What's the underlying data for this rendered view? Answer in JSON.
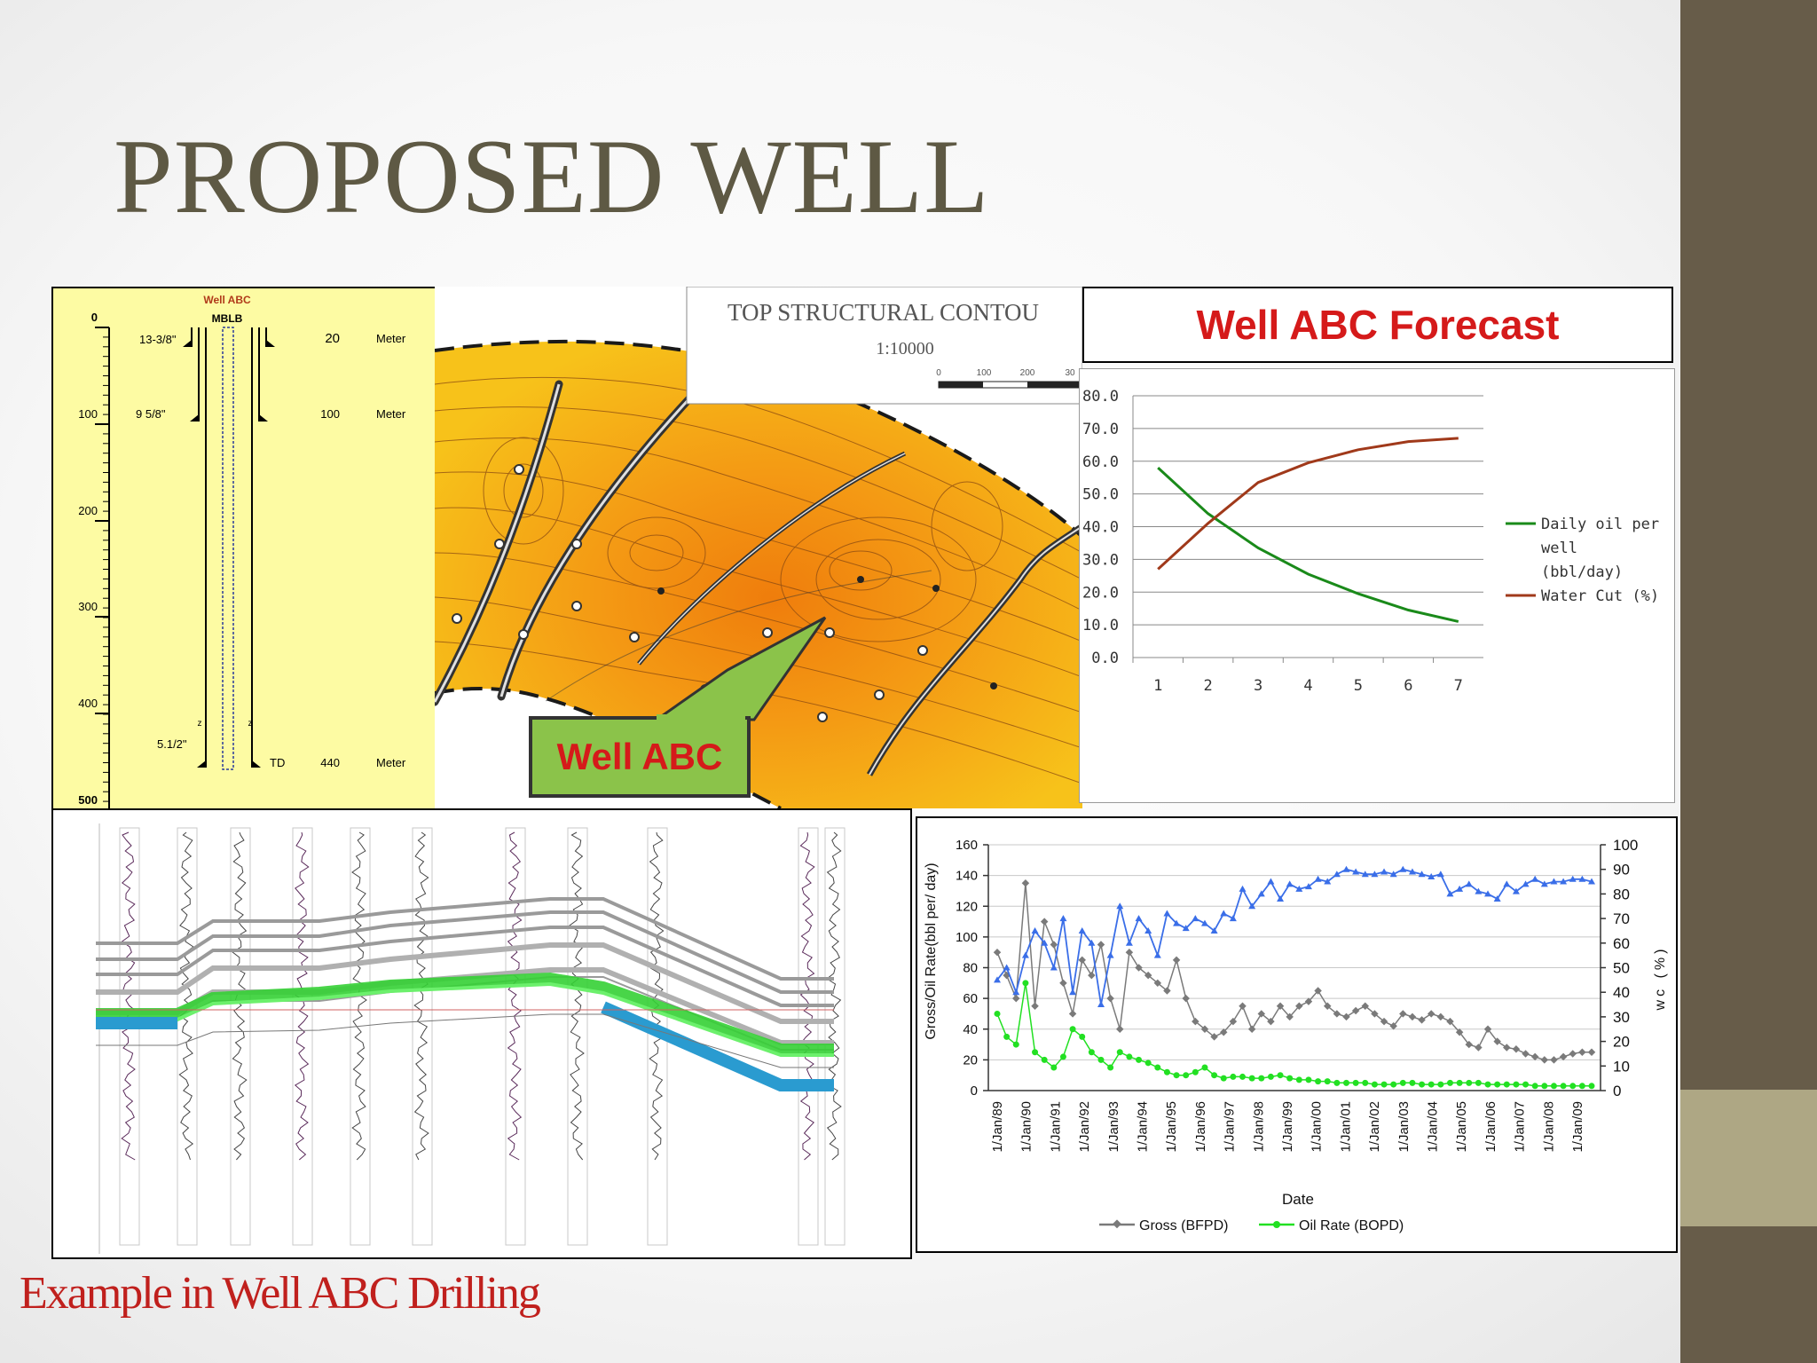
{
  "slide": {
    "title": "PROPOSED WELL",
    "caption": "Example  in Well ABC Drilling"
  },
  "schematic": {
    "header": "Well ABC",
    "mblb": "MBLB",
    "depth_ticks": [
      "0",
      "100",
      "200",
      "300",
      "400",
      "500"
    ],
    "casings": [
      {
        "size": "13-3/8\"",
        "depth": "20",
        "unit": "Meter"
      },
      {
        "size": "9 5/8\"",
        "depth": "100",
        "unit": "Meter"
      },
      {
        "size": "5.1/2\"",
        "marker": "TD",
        "depth": "440",
        "unit": "Meter"
      }
    ],
    "z_markers": [
      "z",
      "z"
    ]
  },
  "map": {
    "header_title": "TOP STRUCTURAL CONTOU",
    "scale": "1:10000",
    "scale_ticks": [
      "0",
      "100",
      "200",
      "30"
    ],
    "callout": "Well ABC"
  },
  "forecast": {
    "title": "Well ABC Forecast"
  },
  "colors": {
    "oil_line": "#1a8a1a",
    "water_cut_line": "#a0391a",
    "gross": "#7a7a7a",
    "oil_rate": "#22e022",
    "wc": "#3a6ee8",
    "accent_red": "#d51a1a",
    "sidebar": "#675c49",
    "sidebar_band": "#aea784"
  },
  "chart_data": [
    {
      "type": "line",
      "title": "Well ABC Forecast",
      "x": [
        1,
        2,
        3,
        4,
        5,
        6,
        7
      ],
      "x_ticks": [
        "1",
        "2",
        "3",
        "4",
        "5",
        "6",
        "7"
      ],
      "y_ticks": [
        "80.0",
        "70.0",
        "60.0",
        "50.0",
        "40.0",
        "30.0",
        "20.0",
        "10.0",
        "0.0"
      ],
      "ylim": [
        0,
        80
      ],
      "grid": true,
      "legend_position": "right",
      "series": [
        {
          "name": "Daily oil per well (bbl/day)",
          "legend_lines": [
            "Daily oil per",
            "well",
            "(bbl/day)"
          ],
          "values": [
            58,
            44,
            33.5,
            25.5,
            19.5,
            14.5,
            11
          ]
        },
        {
          "name": "Water Cut (%)",
          "legend_lines": [
            "Water Cut (%)"
          ],
          "values": [
            27,
            41,
            53.5,
            59.5,
            63.5,
            66,
            67
          ]
        }
      ]
    },
    {
      "type": "line",
      "xlabel": "Date",
      "ylabel": "Gross/Oil Rate(bbl per/ day)",
      "y2label": "wc (%)",
      "ylim": [
        0,
        160
      ],
      "y2lim": [
        0,
        100
      ],
      "y_ticks": [
        "0",
        "20",
        "40",
        "60",
        "80",
        "100",
        "120",
        "140",
        "160"
      ],
      "y2_ticks": [
        "0",
        "10",
        "20",
        "30",
        "40",
        "50",
        "60",
        "70",
        "80",
        "90",
        "100"
      ],
      "x_ticks": [
        "1/Jan/89",
        "1/Jan/90",
        "1/Jan/91",
        "1/Jan/92",
        "1/Jan/93",
        "1/Jan/94",
        "1/Jan/95",
        "1/Jan/96",
        "1/Jan/97",
        "1/Jan/98",
        "1/Jan/99",
        "1/Jan/00",
        "1/Jan/01",
        "1/Jan/02",
        "1/Jan/03",
        "1/Jan/04",
        "1/Jan/05",
        "1/Jan/06",
        "1/Jan/07",
        "1/Jan/08",
        "1/Jan/09"
      ],
      "legend_position": "bottom",
      "grid": true,
      "series": [
        {
          "name": "Gross (BFPD)",
          "axis": "left",
          "values": [
            90,
            75,
            60,
            135,
            55,
            110,
            95,
            70,
            50,
            85,
            75,
            95,
            60,
            40,
            90,
            80,
            75,
            70,
            65,
            85,
            60,
            45,
            40,
            35,
            38,
            45,
            55,
            40,
            50,
            45,
            55,
            48,
            55,
            58,
            65,
            55,
            50,
            48,
            52,
            55,
            50,
            45,
            42,
            50,
            48,
            46,
            50,
            48,
            45,
            38,
            30,
            28,
            40,
            32,
            28,
            27,
            24,
            22,
            20,
            20,
            22,
            24,
            25,
            25
          ]
        },
        {
          "name": "Oil Rate (BOPD)",
          "axis": "left",
          "values": [
            50,
            35,
            30,
            70,
            25,
            20,
            15,
            22,
            40,
            35,
            25,
            20,
            15,
            25,
            22,
            20,
            18,
            15,
            12,
            10,
            10,
            12,
            15,
            10,
            8,
            9,
            9,
            8,
            8,
            9,
            10,
            8,
            7,
            7,
            6,
            6,
            5,
            5,
            5,
            5,
            4,
            4,
            4,
            5,
            5,
            4,
            4,
            4,
            5,
            5,
            5,
            5,
            4,
            4,
            4,
            4,
            4,
            3,
            3,
            3,
            3,
            3,
            3,
            3
          ]
        },
        {
          "name": "wc (%)",
          "axis": "right",
          "values": [
            45,
            50,
            40,
            55,
            65,
            60,
            50,
            70,
            40,
            65,
            60,
            35,
            55,
            75,
            60,
            70,
            65,
            55,
            72,
            68,
            66,
            70,
            68,
            65,
            72,
            70,
            82,
            75,
            80,
            85,
            78,
            84,
            82,
            83,
            86,
            85,
            88,
            90,
            89,
            88,
            88,
            89,
            88,
            90,
            89,
            88,
            87,
            88,
            80,
            82,
            84,
            81,
            80,
            78,
            84,
            81,
            84,
            86,
            84,
            85,
            85,
            86,
            86,
            85
          ]
        }
      ]
    }
  ]
}
